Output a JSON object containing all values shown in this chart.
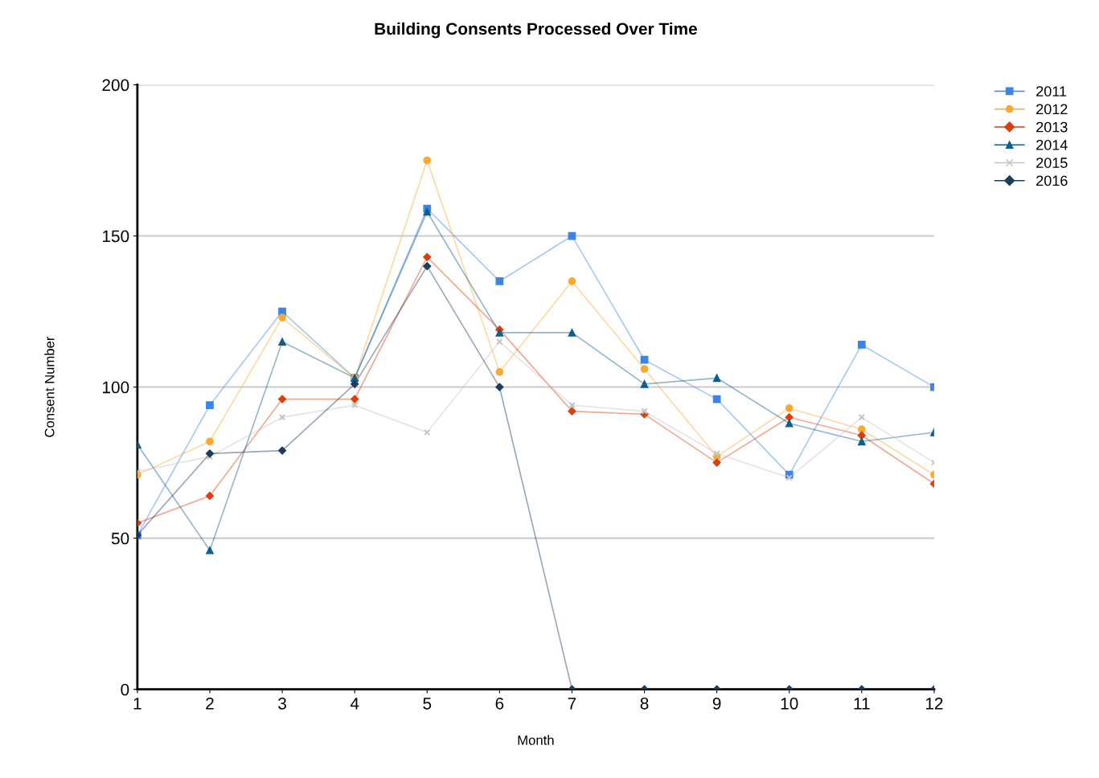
{
  "chart_data": {
    "type": "line",
    "title": "Building Consents Processed Over Time",
    "xlabel": "Month",
    "ylabel": "Consent Number",
    "x": [
      1,
      2,
      3,
      4,
      5,
      6,
      7,
      8,
      9,
      10,
      11,
      12
    ],
    "xlim": [
      1,
      12
    ],
    "xticks": [
      1,
      2,
      3,
      4,
      5,
      6,
      7,
      8,
      9,
      10,
      11,
      12
    ],
    "ylim": [
      0,
      200
    ],
    "yticks": [
      0,
      50,
      100,
      150,
      200
    ],
    "grid": "y",
    "legend": "top right",
    "series": [
      {
        "name": "2011",
        "color": "#3b84f0",
        "marker": "square",
        "values": [
          51,
          94,
          125,
          103,
          159,
          135,
          150,
          109,
          96,
          71,
          114,
          100
        ]
      },
      {
        "name": "2012",
        "color": "#fbaa2f",
        "marker": "circle",
        "values": [
          71,
          82,
          123,
          103,
          175,
          105,
          135,
          106,
          77,
          93,
          86,
          71
        ]
      },
      {
        "name": "2013",
        "color": "#dc3e0e",
        "marker": "diamond",
        "values": [
          55,
          64,
          96,
          96,
          143,
          119,
          92,
          91,
          75,
          90,
          84,
          68
        ]
      },
      {
        "name": "2014",
        "color": "#0f5f8c",
        "marker": "triangle",
        "values": [
          81,
          46,
          115,
          103,
          158,
          118,
          118,
          101,
          103,
          88,
          82,
          85
        ]
      },
      {
        "name": "2015",
        "color": "#c4c4c4",
        "marker": "cross",
        "values": [
          72,
          77,
          90,
          94,
          85,
          115,
          94,
          92,
          78,
          70,
          90,
          75
        ]
      },
      {
        "name": "2016",
        "color": "#1c3d5e",
        "marker": "diamond",
        "values": [
          51,
          78,
          79,
          101,
          140,
          100,
          0,
          0,
          0,
          0,
          0,
          0
        ]
      }
    ]
  }
}
